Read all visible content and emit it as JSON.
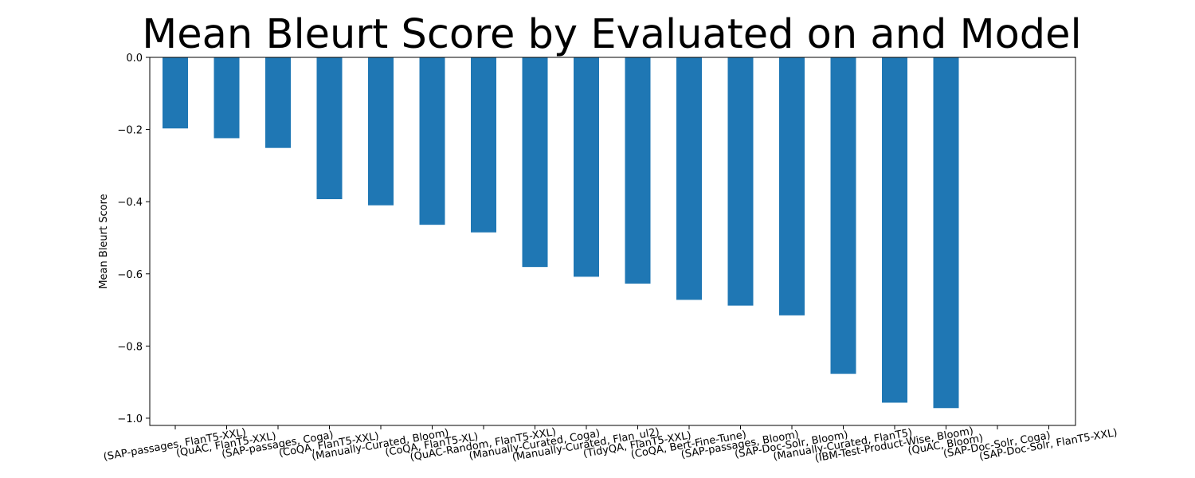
{
  "chart_data": {
    "type": "bar",
    "title": "Mean Bleurt Score by Evaluated on and Model",
    "xlabel": "",
    "ylabel": "Mean Bleurt Score",
    "ylim": [
      -1.02,
      0.0
    ],
    "yticks": [
      0.0,
      -0.2,
      -0.4,
      -0.6,
      -0.8,
      -1.0
    ],
    "ytick_labels": [
      "0.0",
      "−0.2",
      "−0.4",
      "−0.6",
      "−0.8",
      "−1.0"
    ],
    "grid": false,
    "bar_color": "#1f77b4",
    "categories": [
      "(SAP-passages, FlanT5-XXL)",
      "(QuAC, FlanT5-XXL)",
      "(SAP-passages, Coga)",
      "(CoQA, FlanT5-XXL)",
      "(Manually-Curated, Bloom)",
      "(CoQA, FlanT5-XL)",
      "(QuAC-Random, FlanT5-XXL)",
      "(Manually-Curated, Coga)",
      "(Manually-Curated, Flan_ul2)",
      "(TidyQA, FlanT5-XXL)",
      "(CoQA, Bert-Fine-Tune)",
      "(SAP-passages, Bloom)",
      "(SAP-Doc-Solr, Bloom)",
      "(Manually-Curated, FlanT5)",
      "(IBM-Test-Product-Wise, Bloom)",
      "(QuAC, Bloom)",
      "(SAP-Doc-Solr, Coga)",
      "(SAP-Doc-Solr, FlanT5-XXL)"
    ],
    "values": [
      -0.197,
      -0.224,
      -0.251,
      -0.393,
      -0.41,
      -0.464,
      -0.485,
      -0.581,
      -0.608,
      -0.627,
      -0.672,
      -0.688,
      -0.715,
      -0.877,
      -0.957,
      -0.972,
      0.0,
      0.0
    ]
  }
}
